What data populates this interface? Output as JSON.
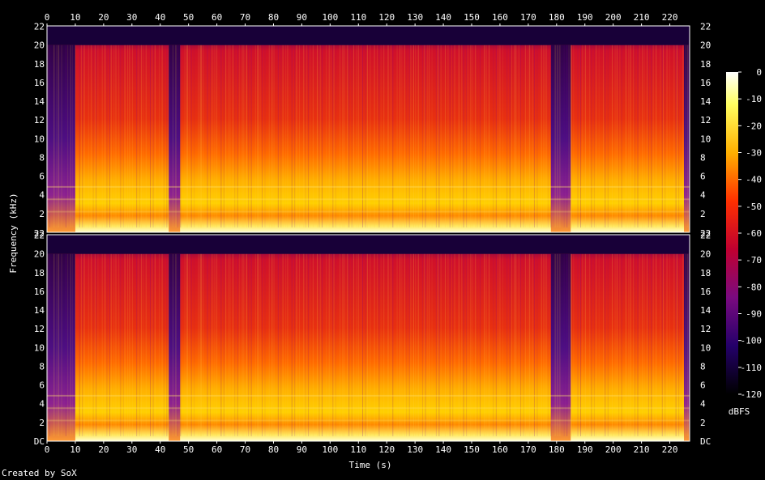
{
  "chart_data": {
    "type": "heatmap",
    "credit": "Created by SoX",
    "xlabel": "Time (s)",
    "ylabel": "Frequency (kHz)",
    "xlim": [
      0,
      227
    ],
    "x_ticks": [
      0,
      10,
      20,
      30,
      40,
      50,
      60,
      70,
      80,
      90,
      100,
      110,
      120,
      130,
      140,
      150,
      160,
      170,
      180,
      190,
      200,
      210,
      220
    ],
    "ylim_khz": [
      0,
      22.05
    ],
    "y_ticks": [
      "DC",
      "2",
      "4",
      "6",
      "8",
      "10",
      "12",
      "14",
      "16",
      "18",
      "20",
      "22"
    ],
    "channels": [
      {
        "name": "top",
        "top_label": "22",
        "bottom_label": "22"
      },
      {
        "name": "bottom",
        "top_label": "22",
        "bottom_label": "DC"
      }
    ],
    "colorbar": {
      "label": "dBFS",
      "ticks": [
        "0",
        "-10",
        "-20",
        "-30",
        "-40",
        "-50",
        "-60",
        "-70",
        "-80",
        "-90",
        "-100",
        "-110",
        "-120"
      ],
      "range": [
        -120,
        0
      ]
    },
    "quiet_sections_s": [
      [
        0,
        10
      ],
      [
        43,
        47
      ],
      [
        178,
        185
      ],
      [
        225,
        227
      ]
    ],
    "lowpass_cutoff_khz": 20
  }
}
